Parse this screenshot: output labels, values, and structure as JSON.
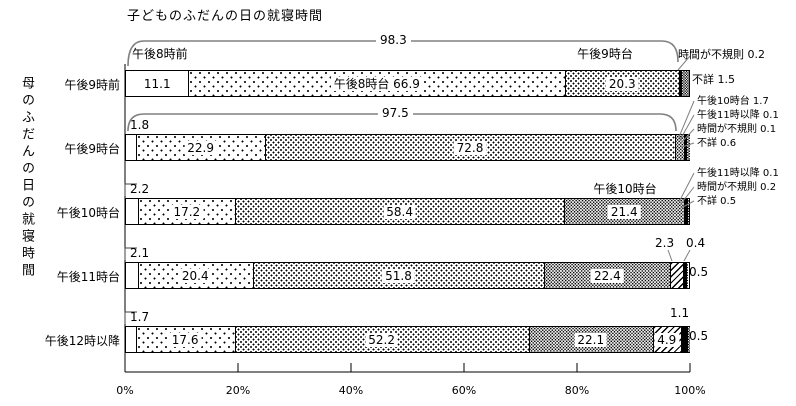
{
  "title": "子どものふだんの日の就寝時間",
  "y_axis_title": "母のふだんの日の就寝時間",
  "x_ticks": [
    "0%",
    "20%",
    "40%",
    "60%",
    "80%",
    "100%"
  ],
  "chart_data": {
    "type": "bar",
    "orientation": "horizontal",
    "stacked": true,
    "xlim": [
      0,
      100
    ],
    "title": "子どものふだんの日の就寝時間",
    "ylabel": "母のふだんの日の就寝時間",
    "categories": [
      "午後9時前",
      "午後9時台",
      "午後10時台",
      "午後11時台",
      "午後12時以降"
    ],
    "series": [
      {
        "name": "午後8時前",
        "values": [
          11.1,
          1.8,
          2.2,
          2.1,
          1.7
        ]
      },
      {
        "name": "午後8時台",
        "values": [
          66.9,
          22.9,
          17.2,
          20.4,
          17.6
        ]
      },
      {
        "name": "午後9時台",
        "values": [
          20.3,
          72.8,
          58.4,
          51.8,
          52.2
        ]
      },
      {
        "name": "午後10時台",
        "values": [
          0,
          1.7,
          21.4,
          22.4,
          22.1
        ]
      },
      {
        "name": "午後11時以降",
        "values": [
          0,
          0.1,
          0.1,
          2.3,
          4.9
        ]
      },
      {
        "name": "時間が不規則",
        "values": [
          0.2,
          0.1,
          0.2,
          0.4,
          1.1
        ]
      },
      {
        "name": "不詳",
        "values": [
          1.5,
          0.6,
          0.5,
          0.5,
          0.5
        ]
      }
    ],
    "group_totals": [
      {
        "row": 0,
        "value": 98.3
      },
      {
        "row": 1,
        "value": 97.5
      }
    ],
    "bar_labels": [
      [
        {
          "seg": 0,
          "text": "11.1"
        },
        {
          "seg": 1,
          "text": "午後8時台 66.9"
        },
        {
          "seg": 2,
          "text": "20.3"
        }
      ],
      [
        {
          "seg": 1,
          "text": "22.9"
        },
        {
          "seg": 2,
          "text": "72.8"
        }
      ],
      [
        {
          "seg": 1,
          "text": "17.2"
        },
        {
          "seg": 2,
          "text": "58.4"
        },
        {
          "seg": 3,
          "text": "21.4"
        }
      ],
      [
        {
          "seg": 1,
          "text": "20.4"
        },
        {
          "seg": 2,
          "text": "51.8"
        },
        {
          "seg": 3,
          "text": "22.4"
        }
      ],
      [
        {
          "seg": 1,
          "text": "17.6"
        },
        {
          "seg": 2,
          "text": "52.2"
        },
        {
          "seg": 3,
          "text": "22.1"
        },
        {
          "seg": 4,
          "text": "4.9"
        }
      ]
    ]
  },
  "annotations": {
    "brace0": "98.3",
    "brace1": "97.5",
    "row0_seg0": "午後8時前",
    "row0_seg2": "午後9時台",
    "row0_irregular": "時間が不規則 0.2",
    "row0_unknown": "不詳 1.5",
    "row1_first": "1.8",
    "row1_list": [
      "午後10時台 1.7",
      "午後11時以降 0.1",
      "時間が不規則 0.1",
      "不詳 0.6"
    ],
    "row2_first": "2.2",
    "row2_seg3": "午後10時台",
    "row2_list": [
      "午後11時以降 0.1",
      "時間が不規則 0.2",
      "不詳 0.5"
    ],
    "row3_first": "2.1",
    "row3_late": "2.3",
    "row3_irregular": "0.4",
    "row3_unknown": "0.5",
    "row4_first": "1.7",
    "row4_irregular": "1.1",
    "row4_unknown": "0.5"
  }
}
